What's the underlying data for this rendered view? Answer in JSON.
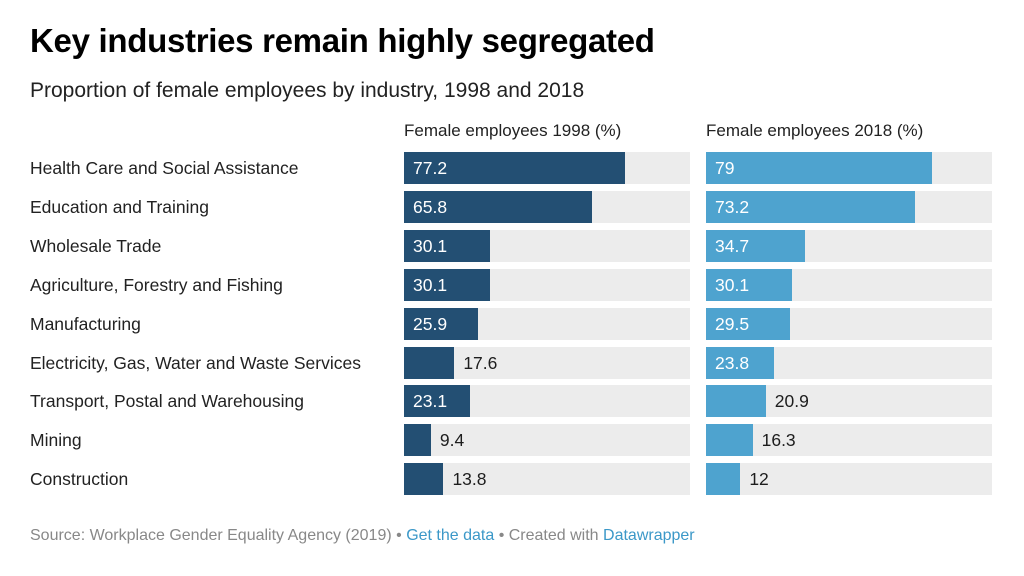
{
  "header": {
    "title": "Key industries remain highly segregated",
    "subtitle": "Proportion of female employees by industry, 1998 and 2018"
  },
  "chart_data": {
    "type": "bar",
    "orientation": "horizontal",
    "title": "Key industries remain highly segregated",
    "subtitle": "Proportion of female employees by industry, 1998 and 2018",
    "xlim": [
      0,
      100
    ],
    "categories": [
      "Health Care and Social Assistance",
      "Education and Training",
      "Wholesale Trade",
      "Agriculture, Forestry and Fishing",
      "Manufacturing",
      "Electricity, Gas, Water and Waste Services",
      "Transport, Postal and Warehousing",
      "Mining",
      "Construction"
    ],
    "series": [
      {
        "name": "Female employees 1998 (%)",
        "color": "#234f73",
        "values": [
          77.2,
          65.8,
          30.1,
          30.1,
          25.9,
          17.6,
          23.1,
          9.4,
          13.8
        ]
      },
      {
        "name": "Female employees 2018 (%)",
        "color": "#4ea3cf",
        "values": [
          79,
          73.2,
          34.7,
          30.1,
          29.5,
          23.8,
          20.9,
          16.3,
          12
        ]
      }
    ]
  },
  "footer": {
    "source": "Source: Workplace Gender Equality Agency (2019)",
    "separator": " • ",
    "get_data": "Get the data",
    "created_with": "Created with",
    "tool": "Datawrapper"
  }
}
